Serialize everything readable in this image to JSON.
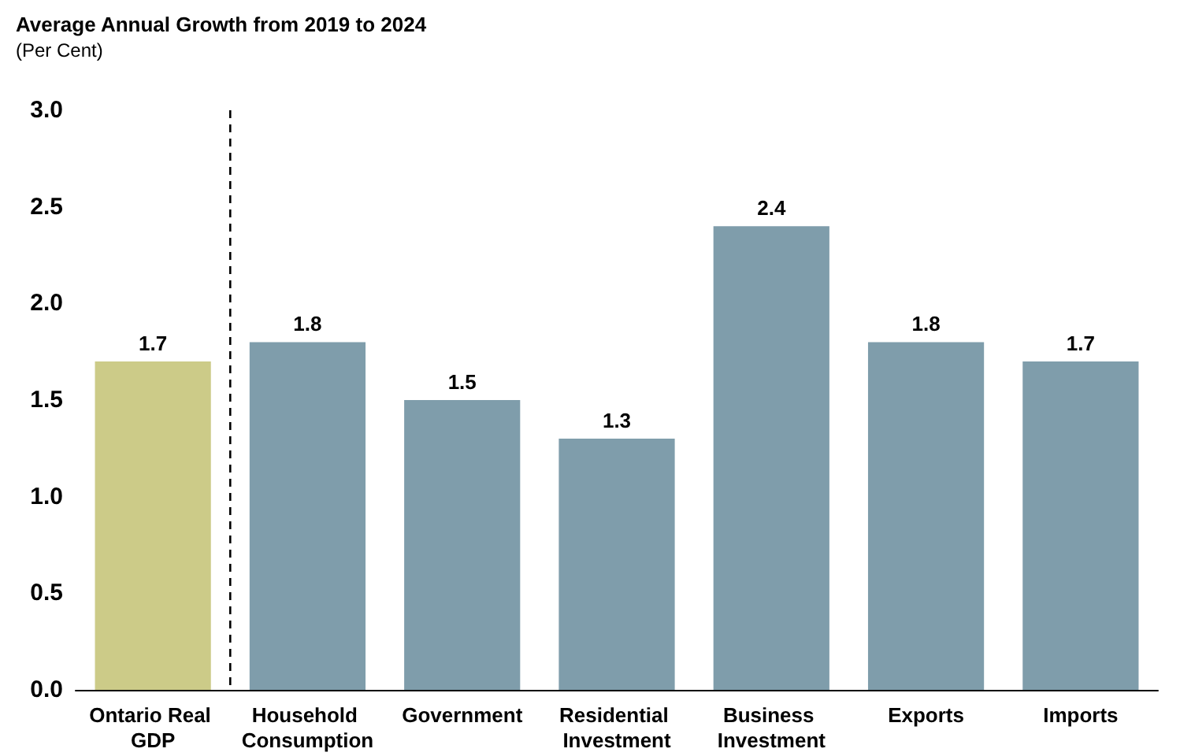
{
  "chart_data": {
    "type": "bar",
    "title": "Average Annual Growth from 2019 to 2024",
    "subtitle": "(Per Cent)",
    "categories": [
      "Ontario Real GDP",
      "Household Consumption",
      "Government",
      "Residential Investment",
      "Business Investment",
      "Exports",
      "Imports"
    ],
    "values": [
      1.7,
      1.8,
      1.5,
      1.3,
      2.4,
      1.8,
      1.7
    ],
    "colors": [
      "#cccb88",
      "#7f9dab",
      "#7f9dab",
      "#7f9dab",
      "#7f9dab",
      "#7f9dab",
      "#7f9dab"
    ],
    "ylim": [
      0,
      3
    ],
    "yticks": [
      "0.0",
      "0.5",
      "1.0",
      "1.5",
      "2.0",
      "2.5",
      "3.0"
    ],
    "data_labels": true
  }
}
